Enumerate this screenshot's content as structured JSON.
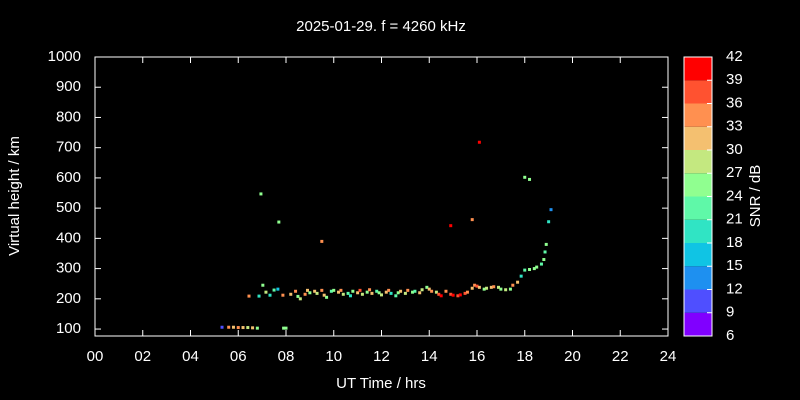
{
  "chart_data": {
    "type": "scatter",
    "title": "2025-01-29. f = 4260 kHz",
    "xlabel": "UT Time / hrs",
    "ylabel": "Virtual height / km",
    "xlim": [
      0,
      24
    ],
    "ylim": [
      77,
      1000
    ],
    "xticks": [
      {
        "value": 0,
        "label": "00"
      },
      {
        "value": 2,
        "label": "02"
      },
      {
        "value": 4,
        "label": "04"
      },
      {
        "value": 6,
        "label": "06"
      },
      {
        "value": 8,
        "label": "08"
      },
      {
        "value": 10,
        "label": "10"
      },
      {
        "value": 12,
        "label": "12"
      },
      {
        "value": 14,
        "label": "14"
      },
      {
        "value": 16,
        "label": "16"
      },
      {
        "value": 18,
        "label": "18"
      },
      {
        "value": 20,
        "label": "20"
      },
      {
        "value": 22,
        "label": "22"
      },
      {
        "value": 24,
        "label": "24"
      }
    ],
    "yticks": [
      100,
      200,
      300,
      400,
      500,
      600,
      700,
      800,
      900,
      1000
    ],
    "colorbar": {
      "label": "SNR / dB",
      "lim": [
        6,
        42
      ],
      "ticks": [
        6,
        9,
        12,
        15,
        18,
        21,
        24,
        27,
        30,
        33,
        36,
        39,
        42
      ],
      "colors": [
        "#8000ff",
        "#4f4fff",
        "#1e90f0",
        "#10c4e4",
        "#30e4c4",
        "#5ff8a8",
        "#90ff90",
        "#c4e880",
        "#f4c070",
        "#ff9050",
        "#ff5230",
        "#ff0000"
      ]
    },
    "x": [
      5.32,
      5.6,
      5.8,
      6.0,
      6.2,
      6.4,
      6.6,
      6.8,
      6.45,
      6.87,
      6.95,
      7.03,
      7.16,
      7.33,
      7.5,
      7.66,
      7.7,
      7.87,
      7.9,
      8.0,
      8.2,
      8.4,
      8.5,
      8.6,
      8.8,
      8.9,
      9.0,
      9.2,
      9.3,
      9.5,
      9.6,
      9.7,
      9.9,
      10.0,
      10.2,
      10.3,
      10.4,
      10.6,
      10.7,
      10.8,
      11.0,
      11.1,
      11.2,
      11.4,
      11.5,
      11.6,
      11.8,
      11.9,
      12.0,
      12.2,
      12.3,
      12.4,
      12.6,
      12.7,
      12.8,
      13.0,
      13.1,
      13.3,
      13.4,
      13.6,
      13.7,
      13.9,
      14.0,
      14.1,
      14.3,
      14.4,
      14.5,
      14.7,
      14.9,
      15.0,
      15.2,
      15.3,
      15.5,
      15.6,
      15.8,
      15.9,
      16.0,
      16.1,
      16.3,
      16.4,
      16.6,
      16.7,
      16.9,
      17.0,
      17.2,
      17.4,
      17.5,
      17.7,
      17.85,
      18.0,
      18.2,
      18.4,
      18.5,
      18.7,
      18.8,
      18.85,
      18.9,
      19.0,
      19.1,
      9.5,
      14.9,
      15.8,
      16.1,
      18.0,
      18.2
    ],
    "y": [
      106,
      106,
      106,
      105,
      105,
      105,
      104,
      103,
      209,
      209,
      547,
      245,
      222,
      212,
      229,
      232,
      454,
      212,
      103,
      103,
      215,
      225,
      208,
      200,
      215,
      228,
      220,
      225,
      218,
      228,
      212,
      205,
      225,
      228,
      222,
      228,
      215,
      218,
      210,
      225,
      220,
      228,
      215,
      222,
      230,
      218,
      225,
      220,
      213,
      222,
      228,
      218,
      210,
      220,
      225,
      218,
      228,
      222,
      225,
      220,
      230,
      238,
      232,
      225,
      222,
      215,
      210,
      225,
      215,
      212,
      210,
      213,
      218,
      222,
      235,
      245,
      242,
      238,
      232,
      235,
      238,
      240,
      238,
      232,
      230,
      232,
      245,
      255,
      275,
      295,
      297,
      300,
      305,
      315,
      330,
      355,
      380,
      455,
      495,
      390,
      442,
      462,
      718,
      602,
      595
    ],
    "snr": [
      10,
      33,
      30,
      33,
      30,
      27,
      30,
      24,
      33,
      18,
      24,
      24,
      27,
      18,
      21,
      15,
      24,
      33,
      24,
      24,
      30,
      33,
      24,
      27,
      33,
      30,
      24,
      30,
      27,
      33,
      30,
      24,
      21,
      24,
      30,
      33,
      27,
      21,
      18,
      24,
      30,
      36,
      27,
      24,
      33,
      30,
      21,
      24,
      27,
      30,
      33,
      18,
      21,
      24,
      30,
      27,
      33,
      24,
      21,
      30,
      27,
      24,
      30,
      33,
      27,
      36,
      39,
      33,
      36,
      39,
      36,
      39,
      36,
      33,
      30,
      33,
      36,
      30,
      24,
      27,
      30,
      33,
      27,
      24,
      27,
      24,
      33,
      30,
      18,
      21,
      24,
      24,
      24,
      21,
      24,
      21,
      24,
      18,
      12,
      33,
      39,
      33,
      39,
      24,
      24
    ]
  }
}
